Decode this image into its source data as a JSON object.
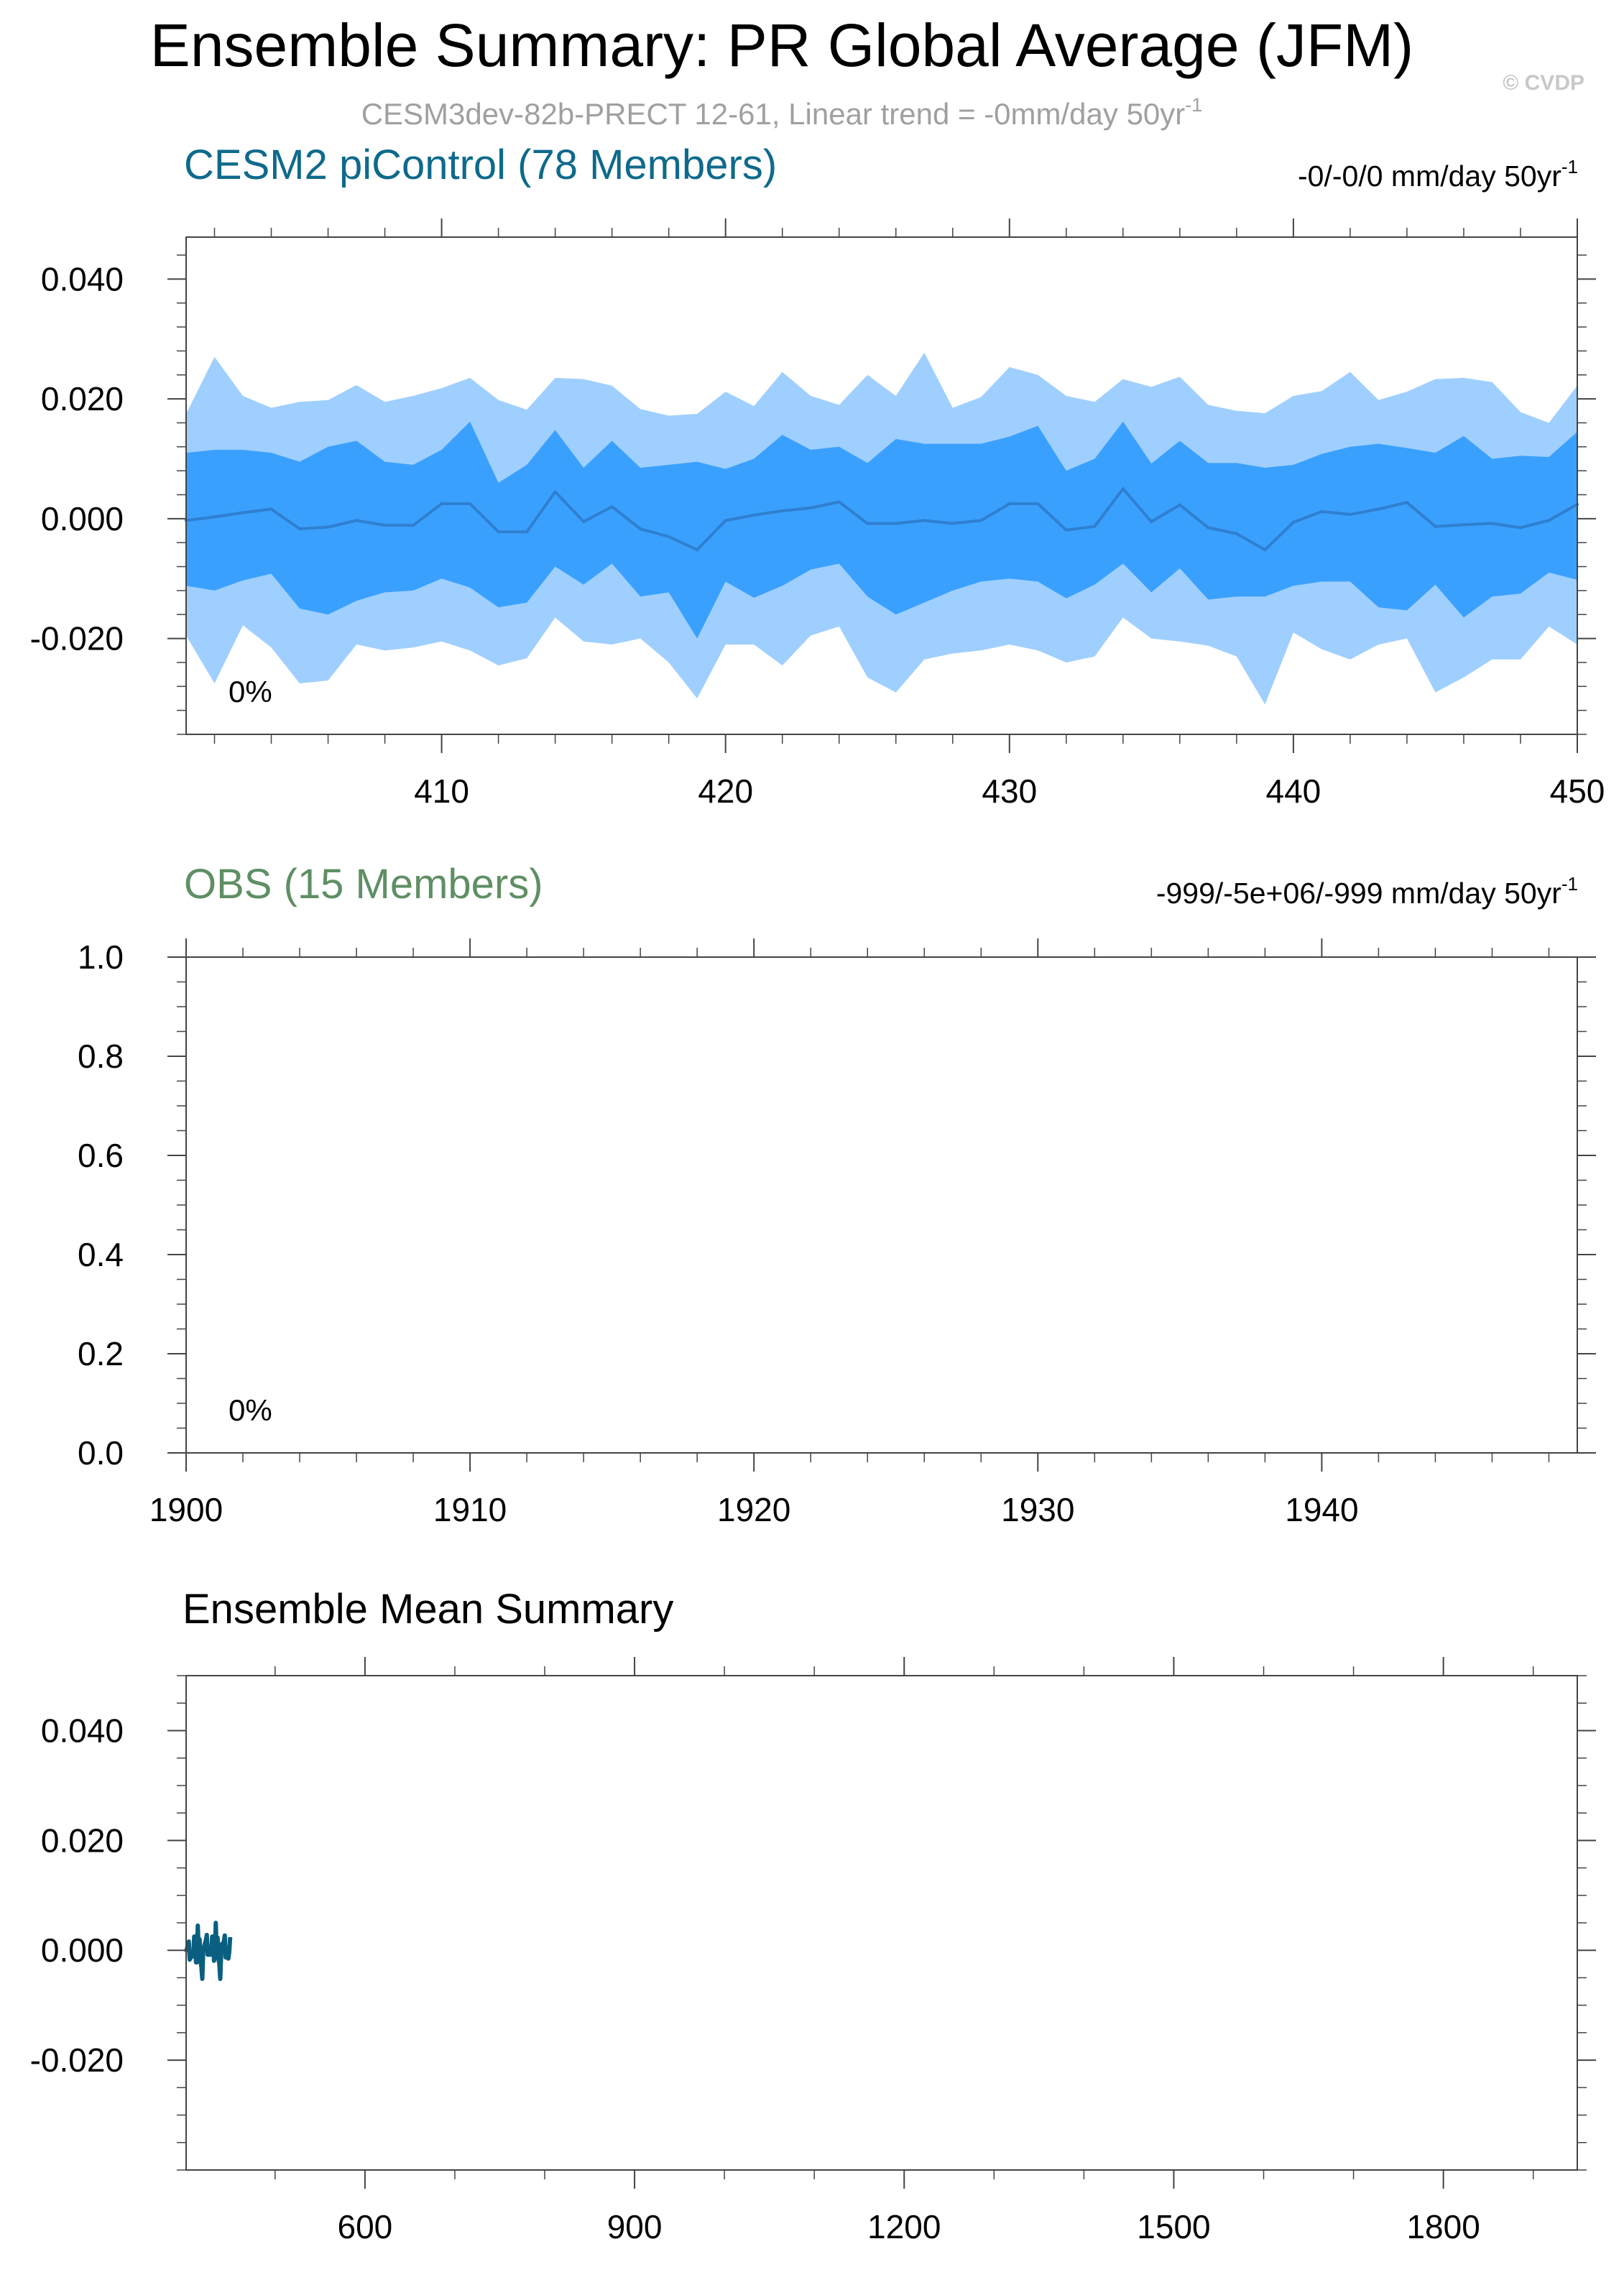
{
  "figure": {
    "title": "Ensemble Summary: PR Global Average (JFM)",
    "subtitle_main": "CESM3dev-82b-PRECT 12-61, Linear trend = -0mm/day 50yr",
    "subtitle_sup": "-1",
    "watermark": "© CVDP"
  },
  "colors": {
    "band_outer": "#9fcffe",
    "band_inner": "#3aa0fd",
    "mean_line": "#2f7fd0",
    "model_title": "#0e6a8c",
    "obs_title": "#5f8f64",
    "em_line": "#0a5f80",
    "frame": "#444444",
    "text": "#000000",
    "grey_text": "#a0a0a0"
  },
  "chart_data": [
    {
      "type": "area",
      "panel": "model",
      "title": "CESM2 piControl (78 Members)",
      "trend_main": "-0/-0/0 mm/day 50yr",
      "trend_sup": "-1",
      "annotation": "0%",
      "xlim": [
        401,
        450
      ],
      "ylim": [
        -0.036,
        0.047
      ],
      "x_ticks": [
        410,
        420,
        430,
        440,
        450
      ],
      "y_ticks": [
        0.04,
        0.02,
        0.0,
        -0.02
      ],
      "y_tick_labels": [
        "0.040",
        "0.020",
        "0.000",
        "-0.020"
      ],
      "x": [
        401,
        402,
        403,
        404,
        405,
        406,
        407,
        408,
        409,
        410,
        411,
        412,
        413,
        414,
        415,
        416,
        417,
        418,
        419,
        420,
        421,
        422,
        423,
        424,
        425,
        426,
        427,
        428,
        429,
        430,
        431,
        432,
        433,
        434,
        435,
        436,
        437,
        438,
        439,
        440,
        441,
        442,
        443,
        444,
        445,
        446,
        447,
        448,
        449,
        450
      ],
      "series": [
        {
          "role": "outer_upper",
          "values": [
            0.0175,
            0.027,
            0.0205,
            0.0185,
            0.0195,
            0.0198,
            0.0223,
            0.0195,
            0.0205,
            0.0218,
            0.0235,
            0.0198,
            0.0182,
            0.0235,
            0.0233,
            0.0222,
            0.0183,
            0.0172,
            0.0175,
            0.0212,
            0.0188,
            0.0245,
            0.0205,
            0.019,
            0.024,
            0.0205,
            0.0277,
            0.0185,
            0.0203,
            0.0253,
            0.024,
            0.0205,
            0.0195,
            0.0233,
            0.022,
            0.0237,
            0.019,
            0.018,
            0.0176,
            0.0205,
            0.0213,
            0.0245,
            0.0198,
            0.0212,
            0.0233,
            0.0235,
            0.0228,
            0.0178,
            0.016,
            0.0222
          ]
        },
        {
          "role": "inner_upper",
          "values": [
            0.011,
            0.0115,
            0.0115,
            0.011,
            0.0095,
            0.012,
            0.013,
            0.0095,
            0.009,
            0.0115,
            0.0162,
            0.006,
            0.009,
            0.0148,
            0.0085,
            0.013,
            0.0085,
            0.009,
            0.0095,
            0.0083,
            0.01,
            0.014,
            0.0115,
            0.012,
            0.0093,
            0.0133,
            0.0125,
            0.0125,
            0.0125,
            0.0137,
            0.0155,
            0.008,
            0.01,
            0.0162,
            0.0092,
            0.013,
            0.0093,
            0.0093,
            0.0085,
            0.009,
            0.0108,
            0.012,
            0.0125,
            0.0118,
            0.011,
            0.0138,
            0.01,
            0.0105,
            0.0103,
            0.0145
          ]
        },
        {
          "role": "ensemble_mean",
          "values": [
            -0.0003,
            0.0003,
            0.001,
            0.0016,
            -0.0017,
            -0.0014,
            -0.0003,
            -0.0011,
            -0.0011,
            0.0025,
            0.0025,
            -0.0022,
            -0.0022,
            0.0045,
            -0.0005,
            0.002,
            -0.0017,
            -0.003,
            -0.0052,
            -0.0003,
            0.0006,
            0.0013,
            0.0018,
            0.0028,
            -0.0008,
            -0.0008,
            -0.0003,
            -0.0008,
            -0.0003,
            0.0025,
            0.0025,
            -0.0019,
            -0.0013,
            0.005,
            -0.0005,
            0.0023,
            -0.0015,
            -0.0025,
            -0.0052,
            -0.0006,
            0.0012,
            0.0007,
            0.0016,
            0.0027,
            -0.0013,
            -0.001,
            -0.0008,
            -0.0015,
            -0.0003,
            0.0024
          ]
        },
        {
          "role": "inner_lower",
          "values": [
            -0.0112,
            -0.012,
            -0.0103,
            -0.0092,
            -0.015,
            -0.016,
            -0.0137,
            -0.0123,
            -0.012,
            -0.01,
            -0.0115,
            -0.0148,
            -0.014,
            -0.008,
            -0.011,
            -0.0075,
            -0.013,
            -0.0123,
            -0.02,
            -0.0105,
            -0.0132,
            -0.0112,
            -0.0085,
            -0.0075,
            -0.013,
            -0.016,
            -0.014,
            -0.012,
            -0.0105,
            -0.01,
            -0.0105,
            -0.0133,
            -0.011,
            -0.0075,
            -0.0123,
            -0.0083,
            -0.0135,
            -0.013,
            -0.013,
            -0.0112,
            -0.0105,
            -0.0105,
            -0.0148,
            -0.0153,
            -0.011,
            -0.0165,
            -0.013,
            -0.0125,
            -0.009,
            -0.0102
          ]
        },
        {
          "role": "outer_lower",
          "values": [
            -0.0195,
            -0.0275,
            -0.0178,
            -0.0215,
            -0.0275,
            -0.027,
            -0.021,
            -0.022,
            -0.0215,
            -0.0205,
            -0.022,
            -0.0245,
            -0.0233,
            -0.0165,
            -0.0205,
            -0.021,
            -0.02,
            -0.024,
            -0.03,
            -0.021,
            -0.021,
            -0.0245,
            -0.0195,
            -0.018,
            -0.0265,
            -0.029,
            -0.0235,
            -0.0225,
            -0.022,
            -0.021,
            -0.022,
            -0.024,
            -0.023,
            -0.0165,
            -0.02,
            -0.0205,
            -0.0212,
            -0.023,
            -0.031,
            -0.019,
            -0.0218,
            -0.0235,
            -0.021,
            -0.02,
            -0.029,
            -0.0265,
            -0.0235,
            -0.0235,
            -0.018,
            -0.021
          ]
        }
      ]
    },
    {
      "type": "line",
      "panel": "obs",
      "title": "OBS (15 Members)",
      "trend_main": "-999/-5e+06/-999 mm/day 50yr",
      "trend_sup": "-1",
      "annotation": "0%",
      "xlim": [
        1900,
        1949
      ],
      "ylim": [
        0.0,
        1.0
      ],
      "x_ticks": [
        1900,
        1910,
        1920,
        1930,
        1940
      ],
      "y_ticks": [
        1.0,
        0.8,
        0.6,
        0.4,
        0.2,
        0.0
      ],
      "y_tick_labels": [
        "1.0",
        "0.8",
        "0.6",
        "0.4",
        "0.2",
        "0.0"
      ],
      "series": []
    },
    {
      "type": "line",
      "panel": "ensemble_mean_summary",
      "title": "Ensemble Mean Summary",
      "xlim": [
        401,
        1949
      ],
      "ylim": [
        -0.04,
        0.05
      ],
      "x_ticks": [
        600,
        900,
        1200,
        1500,
        1800
      ],
      "y_ticks": [
        0.04,
        0.02,
        0.0,
        -0.02
      ],
      "y_tick_labels": [
        "0.040",
        "0.020",
        "0.000",
        "-0.020"
      ],
      "series": [
        {
          "name": "",
          "x_start": 401,
          "x_step": 1,
          "values": [
            -0.0003,
            0.0003,
            0.001,
            0.0016,
            -0.0017,
            -0.0014,
            -0.0003,
            -0.0011,
            -0.0011,
            0.0025,
            0.0025,
            -0.0022,
            -0.0022,
            0.0045,
            -0.0005,
            0.002,
            -0.0017,
            -0.003,
            -0.0052,
            -0.0003,
            0.0006,
            0.0013,
            0.0018,
            0.0028,
            -0.0008,
            -0.0008,
            -0.0003,
            -0.0008,
            -0.0003,
            0.0025,
            0.0025,
            -0.0019,
            -0.0013,
            0.005,
            -0.0005,
            0.0023,
            -0.0015,
            -0.0025,
            -0.0052,
            -0.0006,
            0.0012,
            0.0007,
            0.0016,
            0.0027,
            -0.0013,
            -0.001,
            -0.0008,
            -0.0015,
            -0.0003,
            0.0024
          ]
        }
      ]
    }
  ]
}
